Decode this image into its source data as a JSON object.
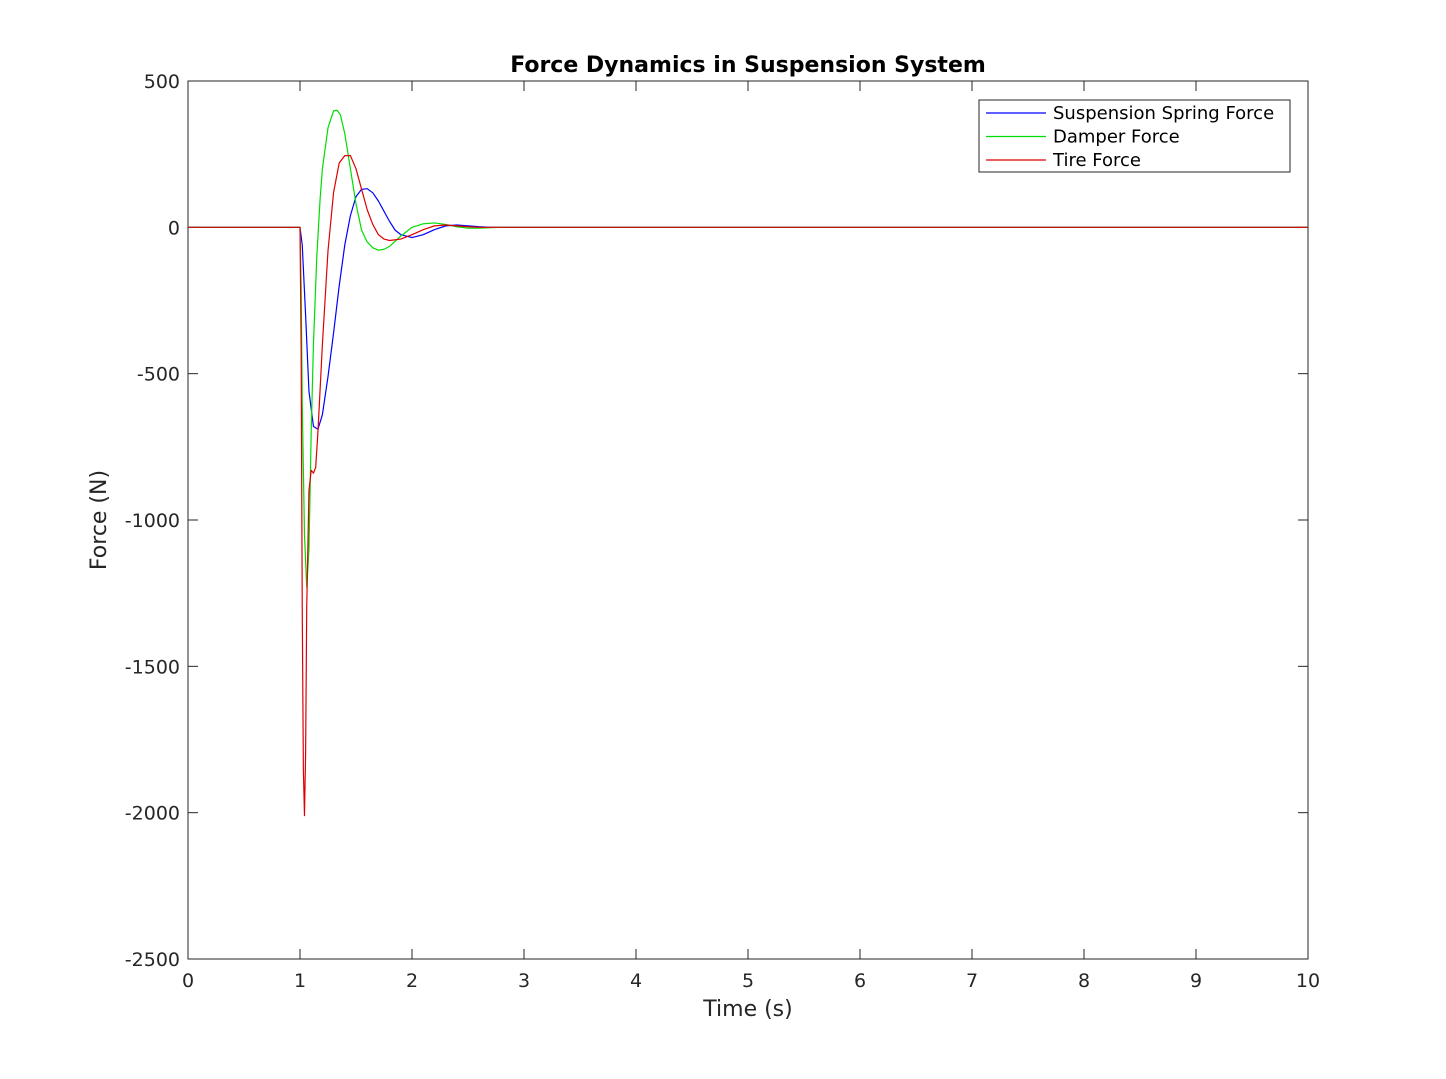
{
  "chart_data": {
    "type": "line",
    "title": "Force Dynamics in Suspension System",
    "xlabel": "Time (s)",
    "ylabel": "Force (N)",
    "xlim": [
      0,
      10
    ],
    "ylim": [
      -2500,
      500
    ],
    "xticks": [
      "0",
      "1",
      "2",
      "3",
      "4",
      "5",
      "6",
      "7",
      "8",
      "9",
      "10"
    ],
    "yticks": [
      "500",
      "0",
      "-500",
      "-1000",
      "-1500",
      "-2000",
      "-2500"
    ],
    "grid": false,
    "legend_position": "top-right",
    "series": [
      {
        "name": "Suspension Spring Force",
        "color": "#0000ff",
        "x": [
          0,
          1.0,
          1.02,
          1.05,
          1.08,
          1.12,
          1.16,
          1.2,
          1.25,
          1.3,
          1.35,
          1.4,
          1.45,
          1.5,
          1.55,
          1.6,
          1.65,
          1.7,
          1.75,
          1.8,
          1.85,
          1.9,
          2.0,
          2.1,
          2.2,
          2.3,
          2.4,
          2.5,
          2.6,
          2.7,
          2.8,
          10
        ],
        "y": [
          0,
          0,
          -60,
          -300,
          -560,
          -680,
          -690,
          -640,
          -510,
          -360,
          -200,
          -60,
          40,
          105,
          130,
          132,
          118,
          90,
          55,
          20,
          -10,
          -25,
          -35,
          -25,
          -8,
          5,
          8,
          5,
          2,
          0,
          0,
          0
        ]
      },
      {
        "name": "Damper Force",
        "color": "#00dd00",
        "x": [
          0,
          1.0,
          1.01,
          1.02,
          1.04,
          1.06,
          1.08,
          1.1,
          1.12,
          1.15,
          1.18,
          1.2,
          1.25,
          1.3,
          1.33,
          1.36,
          1.4,
          1.45,
          1.5,
          1.55,
          1.6,
          1.65,
          1.7,
          1.75,
          1.8,
          1.9,
          2.0,
          2.1,
          2.2,
          2.3,
          2.4,
          2.5,
          2.6,
          2.7,
          2.8,
          10
        ],
        "y": [
          0,
          0,
          -200,
          -600,
          -1050,
          -1230,
          -1100,
          -700,
          -400,
          -100,
          100,
          200,
          340,
          398,
          400,
          385,
          320,
          200,
          80,
          -10,
          -50,
          -70,
          -78,
          -75,
          -65,
          -30,
          0,
          12,
          15,
          10,
          2,
          -3,
          -3,
          -1,
          0,
          0
        ]
      },
      {
        "name": "Tire Force",
        "color": "#dd0000",
        "x": [
          0,
          1.0,
          1.01,
          1.02,
          1.03,
          1.04,
          1.05,
          1.06,
          1.07,
          1.08,
          1.1,
          1.12,
          1.14,
          1.16,
          1.2,
          1.25,
          1.3,
          1.35,
          1.4,
          1.45,
          1.5,
          1.55,
          1.6,
          1.65,
          1.7,
          1.75,
          1.8,
          1.9,
          2.0,
          2.1,
          2.2,
          2.3,
          2.4,
          2.5,
          2.6,
          2.7,
          2.8,
          10
        ],
        "y": [
          0,
          0,
          -400,
          -1300,
          -1850,
          -2010,
          -1800,
          -1300,
          -1100,
          -900,
          -830,
          -840,
          -820,
          -700,
          -400,
          -80,
          120,
          220,
          245,
          245,
          200,
          130,
          60,
          10,
          -25,
          -40,
          -45,
          -40,
          -25,
          -8,
          5,
          8,
          5,
          2,
          0,
          0,
          0,
          0
        ]
      }
    ]
  }
}
